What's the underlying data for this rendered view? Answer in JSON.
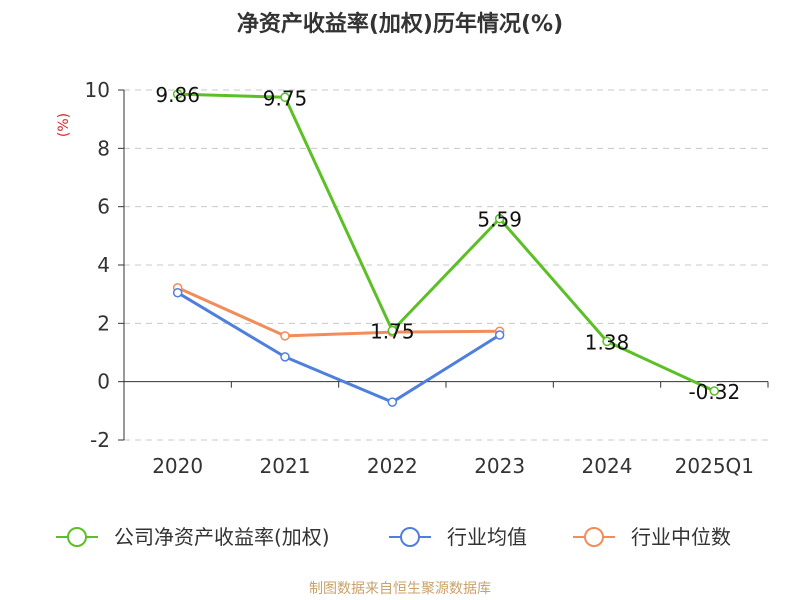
{
  "chart_data": {
    "type": "line",
    "title": "净资产收益率(加权)历年情况(%)",
    "ylabel": "(%)",
    "categories": [
      "2020",
      "2021",
      "2022",
      "2023",
      "2024",
      "2025Q1"
    ],
    "ylim": [
      -2,
      10
    ],
    "yticks": [
      -2,
      0,
      2,
      4,
      6,
      8,
      10
    ],
    "grid": true,
    "legend_position": "bottom",
    "series": [
      {
        "name": "公司净资产收益率(加权)",
        "color": "#5dbf26",
        "values": [
          9.86,
          9.75,
          1.75,
          5.59,
          1.38,
          -0.32
        ],
        "labels": [
          "9.86",
          "9.75",
          "1.75",
          "5.59",
          "1.38",
          "-0.32"
        ]
      },
      {
        "name": "行业均值",
        "color": "#4f7fdc",
        "values": [
          3.05,
          0.85,
          -0.7,
          1.6,
          null,
          null
        ]
      },
      {
        "name": "行业中位数",
        "color": "#f28c5a",
        "values": [
          3.22,
          1.57,
          1.7,
          1.73,
          null,
          null
        ]
      }
    ]
  },
  "footer": {
    "source": "制图数据来自恒生聚源数据库"
  }
}
